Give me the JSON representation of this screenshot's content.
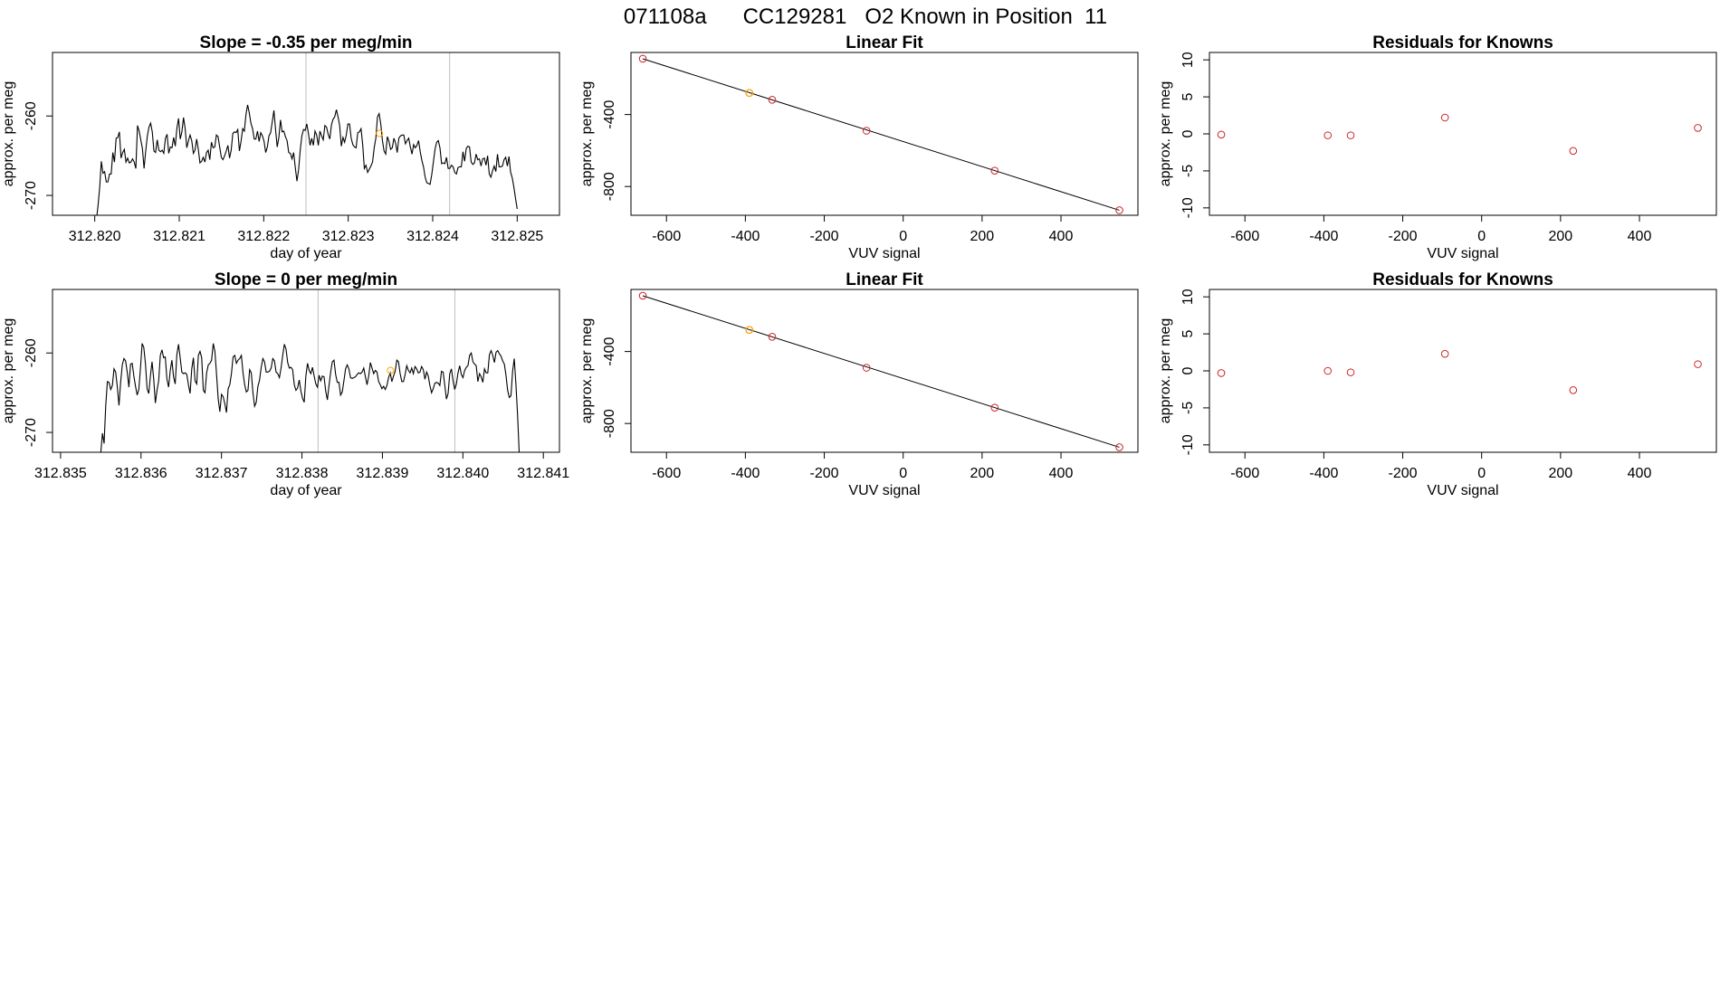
{
  "figure": {
    "title": "071108a      CC129281   O2 Known in Position  11"
  },
  "chart_data": [
    {
      "id": "ts1",
      "type": "line",
      "title": "Slope =  -0.35  per meg/min",
      "xlabel": "day of year",
      "ylabel": "approx. per meg",
      "xlim": [
        312.8195,
        312.8255
      ],
      "ylim": [
        -272.5,
        -252
      ],
      "xticks": [
        312.82,
        312.821,
        312.822,
        312.823,
        312.824,
        312.825
      ],
      "xtick_labels": [
        "312.820",
        "312.821",
        "312.822",
        "312.823",
        "312.824",
        "312.825"
      ],
      "yticks": [
        -260,
        -270
      ],
      "ytick_labels": [
        "-260",
        "-270"
      ],
      "vlines": [
        312.8225,
        312.8242
      ],
      "series_x": [
        312.82,
        312.825
      ],
      "series_y": [
        -274.0,
        -273.1,
        -271.3,
        -269.0,
        -265.7,
        -267.2,
        -267.0,
        -268.3,
        -268.3,
        -267.3,
        -267.3,
        -264.6,
        -265.8,
        -262.8,
        -262.7,
        -262.0,
        -265.3,
        -264.6,
        -264.2,
        -265.8,
        -265.3,
        -265.9,
        -265.8,
        -265.4,
        -265.8,
        -266.6,
        -261.2,
        -261.9,
        -263.0,
        -264.1,
        -266.6,
        -264.4,
        -262.5,
        -261.4,
        -260.9,
        -262.0,
        -264.4,
        -264.6,
        -263.0,
        -264.3,
        -264.5,
        -264.3,
        -264.7,
        -262.8,
        -262.3,
        -264.7,
        -263.9,
        -264.0,
        -262.7,
        -263.8,
        -261.5,
        -260.3,
        -262.9,
        -262.0,
        -260.2,
        -261.6,
        -264.0,
        -263.1,
        -262.4,
        -263.1,
        -264.7,
        -264.3,
        -262.9,
        -264.2,
        -265.9,
        -265.7,
        -265.2,
        -265.8,
        -264.6,
        -264.3,
        -265.5,
        -263.3,
        -264.0,
        -263.9,
        -262.4,
        -262.6,
        -263.9,
        -265.2,
        -265.5,
        -265.0,
        -264.4,
        -263.7,
        -265.3,
        -264.3,
        -262.2,
        -262.0,
        -262.1,
        -261.7,
        -264.4,
        -263.2,
        -261.6,
        -261.9,
        -259.8,
        -258.6,
        -259.6,
        -260.9,
        -261.6,
        -262.9,
        -262.9,
        -261.9,
        -263.2,
        -262.1,
        -262.5,
        -263.2,
        -264.6,
        -263.9,
        -262.5,
        -262.1,
        -260.7,
        -259.3,
        -261.7,
        -263.9,
        -262.7,
        -260.5,
        -262.0,
        -261.9,
        -262.6,
        -263.1,
        -264.6,
        -264.7,
        -265.4,
        -264.6,
        -266.5,
        -268.2,
        -266.8,
        -264.3,
        -262.5,
        -261.7,
        -261.8,
        -261.0,
        -262.2,
        -263.7,
        -262.8,
        -263.7,
        -261.9,
        -262.4,
        -263.7,
        -261.9,
        -262.5,
        -263.0,
        -261.2,
        -261.4,
        -262.3,
        -262.9,
        -261.1,
        -260.4,
        -260.1,
        -259.2,
        -260.1,
        -261.2,
        -263.8,
        -262.7,
        -263.3,
        -262.4,
        -261.0,
        -261.0,
        -262.8,
        -263.6,
        -263.9,
        -264.0,
        -262.1,
        -262.0,
        -261.6,
        -263.6,
        -266.6,
        -266.2,
        -267.1,
        -266.7,
        -266.3,
        -265.8,
        -264.0,
        -262.8,
        -260.1,
        -259.7,
        -261.0,
        -263.1,
        -264.4,
        -264.8,
        -262.6,
        -263.2,
        -264.2,
        -264.0,
        -262.8,
        -263.4,
        -264.6,
        -262.8,
        -262.5,
        -262.4,
        -262.4,
        -263.5,
        -263.1,
        -262.8,
        -263.9,
        -264.8,
        -263.6,
        -264.0,
        -263.7,
        -263.1,
        -264.5,
        -265.6,
        -266.4,
        -267.7,
        -268.4,
        -268.5,
        -268.6,
        -267.4,
        -265.8,
        -264.2,
        -263.3,
        -263.1,
        -264.0,
        -266.0,
        -265.9,
        -266.0,
        -265.2,
        -266.6,
        -266.6,
        -266.2,
        -266.4,
        -267.1,
        -267.3,
        -266.5,
        -266.4,
        -266.4,
        -264.5,
        -265.7,
        -264.1,
        -263.8,
        -263.9,
        -265.8,
        -266.1,
        -265.9,
        -264.8,
        -265.5,
        -265.4,
        -266.3,
        -265.4,
        -265.3,
        -266.2,
        -265.0,
        -267.3,
        -267.7,
        -266.9,
        -266.3,
        -267.0,
        -264.8,
        -266.4,
        -266.4,
        -266.3,
        -265.5,
        -265.2,
        -266.3,
        -265.1,
        -267.1,
        -267.8,
        -269.0,
        -270.4,
        -271.7
      ],
      "point": {
        "x": 312.82337,
        "y": -262.2,
        "color": "#ffa500"
      },
      "line_color": "#000000",
      "vline_color": "#bebebe"
    },
    {
      "id": "fit1",
      "type": "scatter",
      "title": "Linear Fit",
      "xlabel": "VUV signal",
      "ylabel": "approx. per meg",
      "xlim": [
        -690,
        595
      ],
      "ylim": [
        -960,
        -55
      ],
      "xticks": [
        -600,
        -400,
        -200,
        0,
        200,
        400
      ],
      "xtick_labels": [
        "-600",
        "-400",
        "-200",
        "0",
        "200",
        "400"
      ],
      "yticks": [
        -400,
        -800
      ],
      "ytick_labels": [
        "-400",
        "-800"
      ],
      "points": [
        {
          "x": -660,
          "y": -90
        },
        {
          "x": -390,
          "y": -280
        },
        {
          "x": -332,
          "y": -318
        },
        {
          "x": -93,
          "y": -490
        },
        {
          "x": 232,
          "y": -712
        },
        {
          "x": 548,
          "y": -932
        }
      ],
      "highlight": {
        "x": -390,
        "y": -280,
        "color": "#ffa500"
      },
      "point_color": "#cd2626",
      "fit_line": {
        "x": [
          -660,
          548
        ],
        "y": [
          -90,
          -932
        ]
      }
    },
    {
      "id": "res1",
      "type": "scatter",
      "title": "Residuals for Knowns",
      "xlabel": "VUV signal",
      "ylabel": "approx. per meg",
      "xlim": [
        -690,
        595
      ],
      "ylim": [
        -11,
        11
      ],
      "xticks": [
        -600,
        -400,
        -200,
        0,
        200,
        400
      ],
      "xtick_labels": [
        "-600",
        "-400",
        "-200",
        "0",
        "200",
        "400"
      ],
      "yticks": [
        -10,
        -5,
        0,
        5,
        10
      ],
      "ytick_labels": [
        "-10",
        "-5",
        "0",
        "5",
        "10"
      ],
      "points": [
        {
          "x": -660,
          "y": -0.1
        },
        {
          "x": -390,
          "y": -0.2
        },
        {
          "x": -332,
          "y": -0.2
        },
        {
          "x": -93,
          "y": 2.2
        },
        {
          "x": 232,
          "y": -2.3
        },
        {
          "x": 548,
          "y": 0.8
        }
      ],
      "point_color": "#cd2626"
    },
    {
      "id": "ts2",
      "type": "line",
      "title": "Slope =  0  per meg/min",
      "xlabel": "day of year",
      "ylabel": "approx. per meg",
      "xlim": [
        312.8349,
        312.8412
      ],
      "ylim": [
        -272.5,
        -252
      ],
      "xticks": [
        312.835,
        312.836,
        312.837,
        312.838,
        312.839,
        312.84,
        312.841
      ],
      "xtick_labels": [
        "312.835",
        "312.836",
        "312.837",
        "312.838",
        "312.839",
        "312.840",
        "312.841"
      ],
      "yticks": [
        -260,
        -270
      ],
      "ytick_labels": [
        "-260",
        "-270"
      ],
      "vlines": [
        312.8382,
        312.8399
      ],
      "series_x": [
        312.8355,
        312.8407
      ],
      "series_y": [
        -272.6,
        -270.1,
        -271.4,
        -266.6,
        -263.6,
        -263.7,
        -264.6,
        -264.1,
        -262.0,
        -262.4,
        -264.3,
        -266.6,
        -263.7,
        -261.5,
        -260.7,
        -261.0,
        -262.4,
        -264.3,
        -261.4,
        -261.3,
        -262.9,
        -264.2,
        -265.3,
        -264.6,
        -261.9,
        -258.8,
        -259.3,
        -261.3,
        -264.5,
        -265.1,
        -262.9,
        -261.1,
        -263.3,
        -266.3,
        -264.7,
        -263.5,
        -260.3,
        -259.6,
        -260.6,
        -260.5,
        -263.3,
        -264.3,
        -262.2,
        -260.9,
        -263.0,
        -263.9,
        -260.2,
        -258.9,
        -260.6,
        -262.4,
        -262.6,
        -262.5,
        -262.7,
        -264.0,
        -265.1,
        -262.0,
        -260.6,
        -263.5,
        -263.9,
        -260.3,
        -259.8,
        -260.6,
        -264.7,
        -265.0,
        -262.5,
        -261.5,
        -261.3,
        -260.9,
        -258.8,
        -259.8,
        -262.7,
        -265.8,
        -267.4,
        -265.2,
        -265.5,
        -266.4,
        -267.5,
        -264.5,
        -264.0,
        -262.6,
        -260.5,
        -260.3,
        -261.3,
        -260.9,
        -260.7,
        -260.3,
        -262.5,
        -264.0,
        -264.9,
        -264.7,
        -262.1,
        -262.5,
        -265.0,
        -266.7,
        -266.2,
        -264.2,
        -263.4,
        -261.8,
        -260.7,
        -261.1,
        -262.4,
        -262.4,
        -262.3,
        -261.9,
        -260.7,
        -261.0,
        -262.4,
        -262.6,
        -263.1,
        -261.9,
        -260.3,
        -258.9,
        -259.5,
        -261.2,
        -261.9,
        -261.8,
        -262.1,
        -264.0,
        -264.7,
        -264.4,
        -263.4,
        -264.8,
        -265.7,
        -266.2,
        -262.9,
        -261.3,
        -262.2,
        -262.6,
        -261.8,
        -262.9,
        -263.9,
        -264.3,
        -262.8,
        -263.5,
        -262.9,
        -263.0,
        -264.8,
        -265.9,
        -264.1,
        -262.4,
        -261.1,
        -260.9,
        -262.7,
        -263.7,
        -263.7,
        -265.3,
        -264.9,
        -263.5,
        -262.0,
        -261.5,
        -262.0,
        -263.1,
        -263.2,
        -263.1,
        -263.0,
        -262.7,
        -262.5,
        -262.6,
        -262.4,
        -261.9,
        -263.0,
        -264.0,
        -262.9,
        -261.2,
        -261.9,
        -262.6,
        -262.2,
        -262.4,
        -263.6,
        -264.0,
        -264.5,
        -264.2,
        -264.6,
        -264.1,
        -263.1,
        -262.5,
        -263.6,
        -262.9,
        -262.3,
        -260.9,
        -261.1,
        -262.6,
        -263.6,
        -263.6,
        -262.7,
        -261.6,
        -262.2,
        -262.5,
        -261.9,
        -262.6,
        -261.7,
        -262.0,
        -262.5,
        -262.4,
        -261.7,
        -262.1,
        -263.3,
        -262.4,
        -262.9,
        -264.1,
        -265.0,
        -264.5,
        -263.8,
        -263.7,
        -263.8,
        -264.1,
        -262.3,
        -262.4,
        -264.1,
        -265.8,
        -265.1,
        -262.6,
        -262.0,
        -263.5,
        -264.6,
        -263.9,
        -262.5,
        -261.6,
        -262.7,
        -263.1,
        -262.2,
        -261.8,
        -261.6,
        -260.3,
        -260.0,
        -261.1,
        -261.4,
        -261.6,
        -263.6,
        -262.6,
        -263.0,
        -263.7,
        -262.0,
        -262.5,
        -262.5,
        -260.2,
        -259.7,
        -260.3,
        -261.2,
        -259.9,
        -259.7,
        -260.1,
        -260.4,
        -261.0,
        -261.4,
        -262.8,
        -264.7,
        -265.6,
        -265.4,
        -262.3,
        -260.7,
        -263.9,
        -267.8,
        -272.6
      ],
      "point": {
        "x": 312.8391,
        "y": -262.2,
        "color": "#ffa500"
      },
      "line_color": "#000000",
      "vline_color": "#bebebe"
    },
    {
      "id": "fit2",
      "type": "scatter",
      "title": "Linear Fit",
      "xlabel": "VUV signal",
      "ylabel": "approx. per meg",
      "xlim": [
        -690,
        595
      ],
      "ylim": [
        -960,
        -55
      ],
      "xticks": [
        -600,
        -400,
        -200,
        0,
        200,
        400
      ],
      "xtick_labels": [
        "-600",
        "-400",
        "-200",
        "0",
        "200",
        "400"
      ],
      "yticks": [
        -400,
        -800
      ],
      "ytick_labels": [
        "-400",
        "-800"
      ],
      "points": [
        {
          "x": -660,
          "y": -90
        },
        {
          "x": -390,
          "y": -280
        },
        {
          "x": -332,
          "y": -318
        },
        {
          "x": -93,
          "y": -490
        },
        {
          "x": 232,
          "y": -712
        },
        {
          "x": 548,
          "y": -932
        }
      ],
      "highlight": {
        "x": -390,
        "y": -280,
        "color": "#ffa500"
      },
      "point_color": "#cd2626",
      "fit_line": {
        "x": [
          -660,
          548
        ],
        "y": [
          -90,
          -932
        ]
      }
    },
    {
      "id": "res2",
      "type": "scatter",
      "title": "Residuals for Knowns",
      "xlabel": "VUV signal",
      "ylabel": "approx. per meg",
      "xlim": [
        -690,
        595
      ],
      "ylim": [
        -11,
        11
      ],
      "xticks": [
        -600,
        -400,
        -200,
        0,
        200,
        400
      ],
      "xtick_labels": [
        "-600",
        "-400",
        "-200",
        "0",
        "200",
        "400"
      ],
      "yticks": [
        -10,
        -5,
        0,
        5,
        10
      ],
      "ytick_labels": [
        "-10",
        "-5",
        "0",
        "5",
        "10"
      ],
      "points": [
        {
          "x": -660,
          "y": -0.3
        },
        {
          "x": -390,
          "y": 0.0
        },
        {
          "x": -332,
          "y": -0.2
        },
        {
          "x": -93,
          "y": 2.3
        },
        {
          "x": 232,
          "y": -2.6
        },
        {
          "x": 548,
          "y": 0.9
        }
      ],
      "point_color": "#cd2626"
    }
  ]
}
